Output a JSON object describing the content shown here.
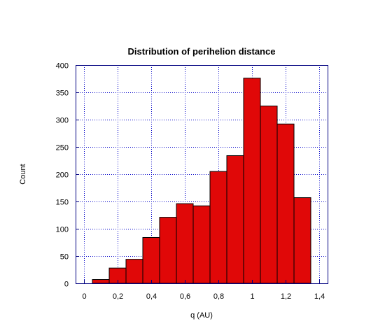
{
  "chart_data": {
    "type": "bar",
    "title": "Distribution of perihelion distance",
    "xlabel": "q (AU)",
    "ylabel": "Count",
    "x_ticks": [
      "0",
      "0,2",
      "0,4",
      "0,6",
      "0,8",
      "1",
      "1,2",
      "1,4"
    ],
    "x_tick_values": [
      0,
      0.2,
      0.4,
      0.6,
      0.8,
      1.0,
      1.2,
      1.4
    ],
    "y_ticks": [
      "0",
      "50",
      "100",
      "150",
      "200",
      "250",
      "300",
      "350",
      "400"
    ],
    "y_tick_values": [
      0,
      50,
      100,
      150,
      200,
      250,
      300,
      350,
      400
    ],
    "xlim": [
      -0.05,
      1.45
    ],
    "ylim": [
      0,
      400
    ],
    "bin_width": 0.1,
    "bins": [
      {
        "start": 0.05,
        "value": 7
      },
      {
        "start": 0.15,
        "value": 28
      },
      {
        "start": 0.25,
        "value": 44
      },
      {
        "start": 0.35,
        "value": 84
      },
      {
        "start": 0.45,
        "value": 121
      },
      {
        "start": 0.55,
        "value": 146
      },
      {
        "start": 0.65,
        "value": 142
      },
      {
        "start": 0.75,
        "value": 205
      },
      {
        "start": 0.85,
        "value": 234
      },
      {
        "start": 0.95,
        "value": 376
      },
      {
        "start": 1.05,
        "value": 325
      },
      {
        "start": 1.15,
        "value": 292
      },
      {
        "start": 1.25,
        "value": 157
      }
    ],
    "grid": true,
    "colors": {
      "bar_fill": "#e00808",
      "bar_stroke": "#000000",
      "frame": "#000080",
      "grid": "#0000c8"
    }
  }
}
